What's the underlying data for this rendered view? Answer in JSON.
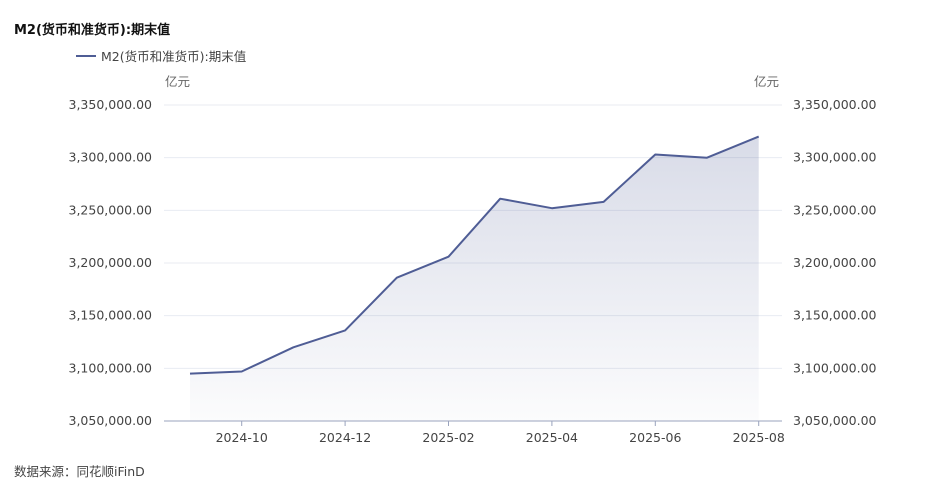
{
  "chart_data": {
    "type": "area",
    "title": "M2(货币和准货币):期末值",
    "legend": {
      "position": "top-left"
    },
    "grid": true,
    "series": [
      {
        "name": "M2(货币和准货币):期末值",
        "color": "#4f5d95",
        "x": [
          "2024-09",
          "2024-10",
          "2024-11",
          "2024-12",
          "2025-01",
          "2025-02",
          "2025-03",
          "2025-04",
          "2025-05",
          "2025-06",
          "2025-07",
          "2025-08"
        ],
        "values": [
          3095000,
          3097000,
          3120000,
          3136000,
          3186000,
          3206000,
          3261000,
          3252000,
          3258000,
          3303000,
          3300000,
          3320000
        ]
      }
    ],
    "x_ticks": [
      "2024-10",
      "2024-12",
      "2025-02",
      "2025-04",
      "2025-06",
      "2025-08"
    ],
    "y_ticks": [
      "3,050,000.00",
      "3,100,000.00",
      "3,150,000.00",
      "3,200,000.00",
      "3,250,000.00",
      "3,300,000.00",
      "3,350,000.00"
    ],
    "ylabel_left": "亿元",
    "ylabel_right": "亿元",
    "ylim": [
      3050000,
      3350000
    ]
  },
  "footer": {
    "source": "数据来源：同花顺iFinD"
  }
}
